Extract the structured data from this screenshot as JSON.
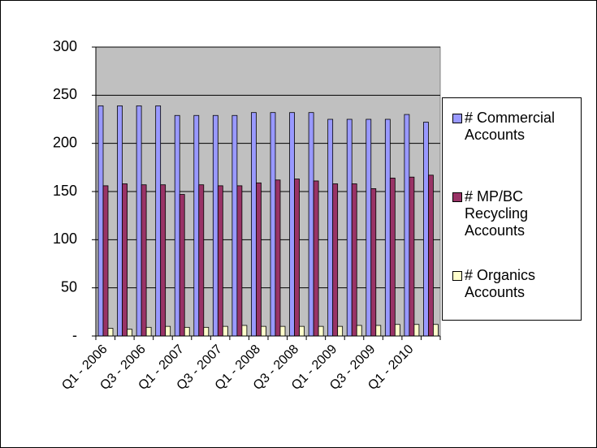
{
  "chart_data": {
    "type": "bar",
    "categories": [
      "Q1 - 2006",
      null,
      "Q3 - 2006",
      null,
      "Q1 - 2007",
      null,
      "Q3 - 2007",
      null,
      "Q1 - 2008",
      null,
      "Q3 - 2008",
      null,
      "Q1 - 2009",
      null,
      "Q3 - 2009",
      null,
      "Q1 - 2010",
      null
    ],
    "series": [
      {
        "name": "# Commercial Accounts",
        "color": "#9999ff",
        "values": [
          239,
          239,
          239,
          239,
          229,
          229,
          229,
          229,
          232,
          232,
          232,
          232,
          225,
          225,
          225,
          225,
          230,
          222
        ]
      },
      {
        "name": "# MP/BC Recycling Accounts",
        "color": "#993366",
        "values": [
          156,
          158,
          157,
          157,
          147,
          157,
          156,
          156,
          159,
          162,
          163,
          161,
          158,
          158,
          153,
          164,
          165,
          167
        ]
      },
      {
        "name": "# Organics Accounts",
        "color": "#ffffcc",
        "values": [
          8,
          7,
          9,
          10,
          9,
          9,
          10,
          11,
          10,
          10,
          10,
          10,
          10,
          11,
          11,
          12,
          12,
          12
        ]
      }
    ],
    "ylim": [
      0,
      300
    ],
    "yticks": [
      {
        "value": 0,
        "label": "-"
      },
      50,
      100,
      150,
      200,
      250,
      300
    ],
    "grid": true,
    "legend": "right"
  }
}
